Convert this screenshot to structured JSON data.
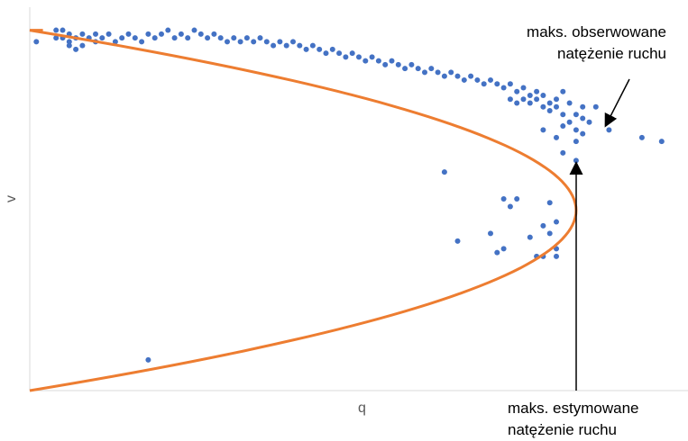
{
  "chart_data": {
    "type": "scatter",
    "xlabel": "q",
    "ylabel": "v",
    "colors": {
      "points": "#4472C4",
      "curve": "#ED7D31",
      "axis": "#D9D9D9",
      "arrow": "#000000"
    },
    "xlim": [
      0,
      1
    ],
    "ylim": [
      0,
      1
    ],
    "grid": false,
    "series": [
      {
        "values": [
          {
            "x": 0.01,
            "y": 0.91
          },
          {
            "x": 0.04,
            "y": 0.92
          },
          {
            "x": 0.04,
            "y": 0.94
          },
          {
            "x": 0.05,
            "y": 0.92
          },
          {
            "x": 0.05,
            "y": 0.94
          },
          {
            "x": 0.06,
            "y": 0.9
          },
          {
            "x": 0.06,
            "y": 0.91
          },
          {
            "x": 0.06,
            "y": 0.93
          },
          {
            "x": 0.07,
            "y": 0.89
          },
          {
            "x": 0.07,
            "y": 0.92
          },
          {
            "x": 0.08,
            "y": 0.9
          },
          {
            "x": 0.08,
            "y": 0.93
          },
          {
            "x": 0.09,
            "y": 0.92
          },
          {
            "x": 0.1,
            "y": 0.91
          },
          {
            "x": 0.1,
            "y": 0.93
          },
          {
            "x": 0.11,
            "y": 0.92
          },
          {
            "x": 0.12,
            "y": 0.93
          },
          {
            "x": 0.13,
            "y": 0.91
          },
          {
            "x": 0.14,
            "y": 0.92
          },
          {
            "x": 0.15,
            "y": 0.93
          },
          {
            "x": 0.16,
            "y": 0.92
          },
          {
            "x": 0.17,
            "y": 0.91
          },
          {
            "x": 0.18,
            "y": 0.93
          },
          {
            "x": 0.19,
            "y": 0.92
          },
          {
            "x": 0.2,
            "y": 0.93
          },
          {
            "x": 0.21,
            "y": 0.94
          },
          {
            "x": 0.22,
            "y": 0.92
          },
          {
            "x": 0.23,
            "y": 0.93
          },
          {
            "x": 0.24,
            "y": 0.92
          },
          {
            "x": 0.25,
            "y": 0.94
          },
          {
            "x": 0.26,
            "y": 0.93
          },
          {
            "x": 0.27,
            "y": 0.92
          },
          {
            "x": 0.28,
            "y": 0.93
          },
          {
            "x": 0.29,
            "y": 0.92
          },
          {
            "x": 0.3,
            "y": 0.91
          },
          {
            "x": 0.31,
            "y": 0.92
          },
          {
            "x": 0.32,
            "y": 0.91
          },
          {
            "x": 0.33,
            "y": 0.92
          },
          {
            "x": 0.34,
            "y": 0.91
          },
          {
            "x": 0.35,
            "y": 0.92
          },
          {
            "x": 0.36,
            "y": 0.91
          },
          {
            "x": 0.37,
            "y": 0.9
          },
          {
            "x": 0.38,
            "y": 0.91
          },
          {
            "x": 0.39,
            "y": 0.9
          },
          {
            "x": 0.4,
            "y": 0.91
          },
          {
            "x": 0.41,
            "y": 0.9
          },
          {
            "x": 0.42,
            "y": 0.89
          },
          {
            "x": 0.43,
            "y": 0.9
          },
          {
            "x": 0.44,
            "y": 0.89
          },
          {
            "x": 0.45,
            "y": 0.88
          },
          {
            "x": 0.46,
            "y": 0.89
          },
          {
            "x": 0.47,
            "y": 0.88
          },
          {
            "x": 0.48,
            "y": 0.87
          },
          {
            "x": 0.49,
            "y": 0.88
          },
          {
            "x": 0.5,
            "y": 0.87
          },
          {
            "x": 0.51,
            "y": 0.86
          },
          {
            "x": 0.52,
            "y": 0.87
          },
          {
            "x": 0.53,
            "y": 0.86
          },
          {
            "x": 0.54,
            "y": 0.85
          },
          {
            "x": 0.55,
            "y": 0.86
          },
          {
            "x": 0.56,
            "y": 0.85
          },
          {
            "x": 0.57,
            "y": 0.84
          },
          {
            "x": 0.58,
            "y": 0.85
          },
          {
            "x": 0.59,
            "y": 0.84
          },
          {
            "x": 0.6,
            "y": 0.83
          },
          {
            "x": 0.61,
            "y": 0.84
          },
          {
            "x": 0.62,
            "y": 0.83
          },
          {
            "x": 0.63,
            "y": 0.82
          },
          {
            "x": 0.64,
            "y": 0.83
          },
          {
            "x": 0.65,
            "y": 0.82
          },
          {
            "x": 0.66,
            "y": 0.81
          },
          {
            "x": 0.67,
            "y": 0.82
          },
          {
            "x": 0.68,
            "y": 0.81
          },
          {
            "x": 0.69,
            "y": 0.8
          },
          {
            "x": 0.7,
            "y": 0.81
          },
          {
            "x": 0.71,
            "y": 0.8
          },
          {
            "x": 0.72,
            "y": 0.79
          },
          {
            "x": 0.73,
            "y": 0.8
          },
          {
            "x": 0.74,
            "y": 0.78
          },
          {
            "x": 0.75,
            "y": 0.79
          },
          {
            "x": 0.73,
            "y": 0.76
          },
          {
            "x": 0.74,
            "y": 0.75
          },
          {
            "x": 0.75,
            "y": 0.76
          },
          {
            "x": 0.76,
            "y": 0.77
          },
          {
            "x": 0.76,
            "y": 0.75
          },
          {
            "x": 0.77,
            "y": 0.78
          },
          {
            "x": 0.77,
            "y": 0.76
          },
          {
            "x": 0.78,
            "y": 0.74
          },
          {
            "x": 0.78,
            "y": 0.77
          },
          {
            "x": 0.79,
            "y": 0.75
          },
          {
            "x": 0.79,
            "y": 0.73
          },
          {
            "x": 0.8,
            "y": 0.76
          },
          {
            "x": 0.8,
            "y": 0.74
          },
          {
            "x": 0.81,
            "y": 0.78
          },
          {
            "x": 0.81,
            "y": 0.72
          },
          {
            "x": 0.82,
            "y": 0.75
          },
          {
            "x": 0.82,
            "y": 0.7
          },
          {
            "x": 0.83,
            "y": 0.72
          },
          {
            "x": 0.83,
            "y": 0.68
          },
          {
            "x": 0.84,
            "y": 0.74
          },
          {
            "x": 0.84,
            "y": 0.71
          },
          {
            "x": 0.85,
            "y": 0.7
          },
          {
            "x": 0.78,
            "y": 0.68
          },
          {
            "x": 0.8,
            "y": 0.66
          },
          {
            "x": 0.81,
            "y": 0.69
          },
          {
            "x": 0.83,
            "y": 0.65
          },
          {
            "x": 0.84,
            "y": 0.67
          },
          {
            "x": 0.86,
            "y": 0.74
          },
          {
            "x": 0.81,
            "y": 0.62
          },
          {
            "x": 0.83,
            "y": 0.6
          },
          {
            "x": 0.88,
            "y": 0.68
          },
          {
            "x": 0.93,
            "y": 0.66
          },
          {
            "x": 0.96,
            "y": 0.65
          },
          {
            "x": 0.63,
            "y": 0.57
          },
          {
            "x": 0.73,
            "y": 0.48
          },
          {
            "x": 0.72,
            "y": 0.5
          },
          {
            "x": 0.74,
            "y": 0.5
          },
          {
            "x": 0.79,
            "y": 0.49
          },
          {
            "x": 0.8,
            "y": 0.44
          },
          {
            "x": 0.79,
            "y": 0.41
          },
          {
            "x": 0.76,
            "y": 0.4
          },
          {
            "x": 0.7,
            "y": 0.41
          },
          {
            "x": 0.65,
            "y": 0.39
          },
          {
            "x": 0.78,
            "y": 0.43
          },
          {
            "x": 0.72,
            "y": 0.37
          },
          {
            "x": 0.71,
            "y": 0.36
          },
          {
            "x": 0.77,
            "y": 0.35
          },
          {
            "x": 0.78,
            "y": 0.35
          },
          {
            "x": 0.8,
            "y": 0.37
          },
          {
            "x": 0.8,
            "y": 0.35
          },
          {
            "x": 0.18,
            "y": 0.08
          }
        ]
      }
    ],
    "annotations": [
      {
        "lines": [
          "maks. obserwowane",
          "natężenie ruchu"
        ]
      },
      {
        "lines": [
          "maks. estymowane",
          "natężenie ruchu"
        ]
      }
    ]
  }
}
